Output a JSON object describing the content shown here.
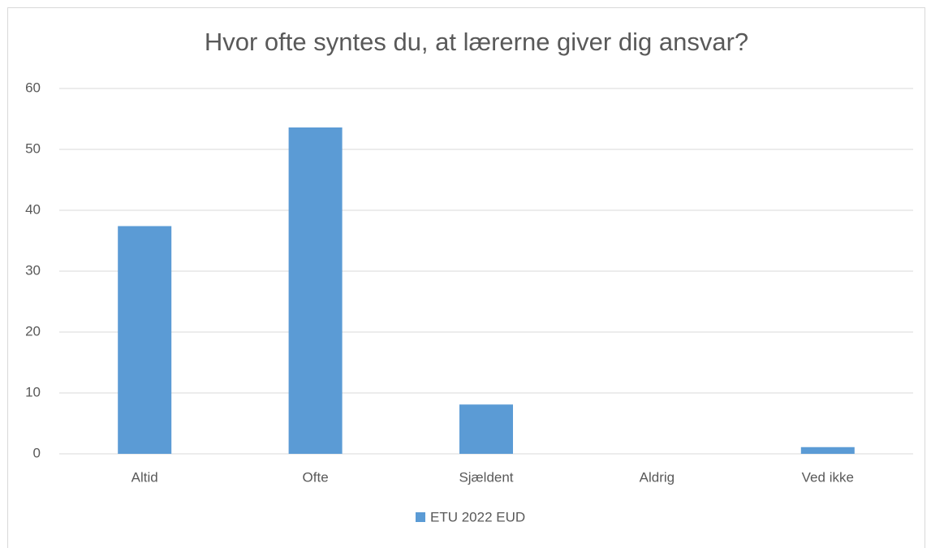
{
  "chart_data": {
    "type": "bar",
    "title": "Hvor ofte syntes du, at lærerne giver dig ansvar?",
    "categories": [
      "Altid",
      "Ofte",
      "Sjældent",
      "Aldrig",
      "Ved ikke"
    ],
    "series": [
      {
        "name": "ETU 2022 EUD",
        "color": "#5b9bd5",
        "values": [
          37.4,
          53.6,
          8.1,
          0,
          1.1
        ]
      }
    ],
    "ylim": [
      0,
      60
    ],
    "yticks": [
      0,
      10,
      20,
      30,
      40,
      50,
      60
    ],
    "grid": true,
    "legend": "bottom"
  }
}
